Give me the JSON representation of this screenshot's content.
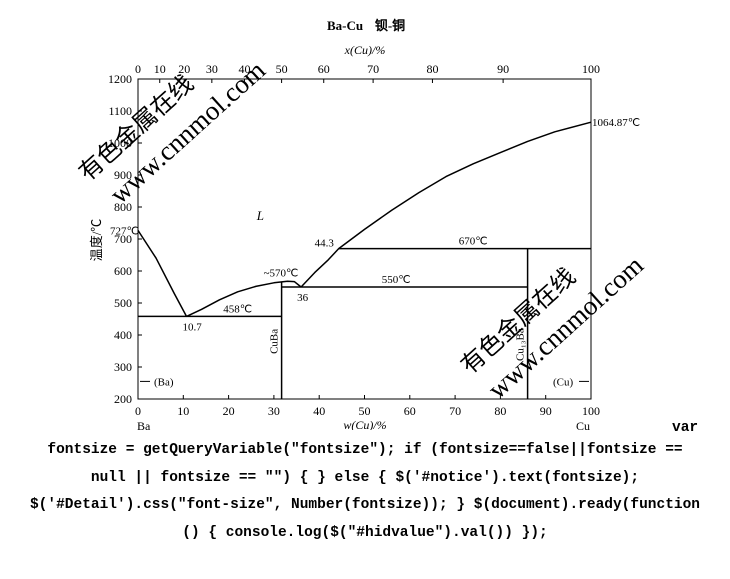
{
  "chart_data": {
    "type": "line",
    "title": "Ba-Cu",
    "title_cn": "钡-铜",
    "xlabel_top": "x(Cu)/%",
    "xlabel_bottom": "w(Cu)/%",
    "ylabel": "温度/℃",
    "xlim": [
      0,
      100
    ],
    "ylim": [
      200,
      1200
    ],
    "grid": false,
    "x_ticks_bottom": [
      0,
      10,
      20,
      30,
      40,
      50,
      60,
      70,
      80,
      90,
      100
    ],
    "x_ticks_top": [
      {
        "label": "0",
        "w": 0
      },
      {
        "label": "10",
        "w": 4.8
      },
      {
        "label": "20",
        "w": 10.2
      },
      {
        "label": "30",
        "w": 16.3
      },
      {
        "label": "40",
        "w": 23.5
      },
      {
        "label": "50",
        "w": 31.7
      },
      {
        "label": "60",
        "w": 41.0
      },
      {
        "label": "70",
        "w": 51.9
      },
      {
        "label": "80",
        "w": 65.0
      },
      {
        "label": "90",
        "w": 80.6
      },
      {
        "label": "100",
        "w": 100
      }
    ],
    "y_ticks": [
      200,
      300,
      400,
      500,
      600,
      700,
      800,
      900,
      1000,
      1100,
      1200
    ],
    "end_labels": {
      "left": "Ba",
      "right": "Cu"
    },
    "series": [
      {
        "values": [
          [
            0,
            727
          ],
          [
            4,
            640
          ],
          [
            8,
            530
          ],
          [
            10.7,
            458
          ]
        ]
      },
      {
        "values": [
          [
            10.7,
            458
          ],
          [
            14,
            480
          ],
          [
            18,
            510
          ],
          [
            22,
            535
          ],
          [
            26,
            552
          ],
          [
            30,
            563
          ],
          [
            33,
            568
          ],
          [
            34.5,
            567
          ],
          [
            36,
            550
          ]
        ]
      },
      {
        "values": [
          [
            36,
            550
          ],
          [
            39,
            595
          ],
          [
            42,
            635
          ],
          [
            44.3,
            670
          ],
          [
            50,
            730
          ],
          [
            56,
            790
          ],
          [
            62,
            845
          ],
          [
            68,
            895
          ],
          [
            74,
            935
          ],
          [
            80,
            970
          ],
          [
            86,
            1005
          ],
          [
            92,
            1035
          ],
          [
            100,
            1064.87
          ]
        ]
      },
      {
        "values": [
          [
            0,
            458
          ],
          [
            31.7,
            458
          ]
        ]
      },
      {
        "values": [
          [
            31.7,
            550
          ],
          [
            86,
            550
          ]
        ]
      },
      {
        "values": [
          [
            44.3,
            670
          ],
          [
            100,
            670
          ]
        ]
      },
      {
        "values": [
          [
            31.7,
            200
          ],
          [
            31.7,
            565
          ]
        ]
      },
      {
        "values": [
          [
            86,
            200
          ],
          [
            86,
            670
          ]
        ]
      }
    ],
    "annotations": [
      {
        "text": "727℃",
        "x": 0,
        "y": 727
      },
      {
        "text": "1064.87℃",
        "x": 100,
        "y": 1064.87
      },
      {
        "text": "L",
        "x": 27,
        "y": 760
      },
      {
        "text": "44.3",
        "x": 44.3,
        "y": 670
      },
      {
        "text": "670℃",
        "x": 74,
        "y": 670
      },
      {
        "text": "~570℃",
        "x": 31.7,
        "y": 570
      },
      {
        "text": "550℃",
        "x": 57,
        "y": 550
      },
      {
        "text": "36",
        "x": 36,
        "y": 550
      },
      {
        "text": "458℃",
        "x": 22,
        "y": 458
      },
      {
        "text": "10.7",
        "x": 10.7,
        "y": 458
      },
      {
        "text": "CuBa",
        "x": 31.7,
        "y": 380
      },
      {
        "text": "Cu₁₃Ba",
        "x": 86,
        "y": 370
      },
      {
        "text": "(Ba)",
        "x": 0,
        "y": 255
      },
      {
        "text": "(Cu)",
        "x": 100,
        "y": 255
      }
    ]
  },
  "watermarks": [
    "有色金属在线",
    "www.cnnmol.com"
  ],
  "code": {
    "var_word": "var",
    "line1": "fontsize = getQueryVariable(\"fontsize\"); if (fontsize==false||fontsize ==",
    "line2": "null || fontsize == \"\") { } else { $('#notice').text(fontsize);",
    "line3": "$('#Detail').css(\"font-size\", Number(fontsize)); } $(document).ready(function",
    "line4": "() { console.log($(\"#hidvalue\").val()) });"
  }
}
